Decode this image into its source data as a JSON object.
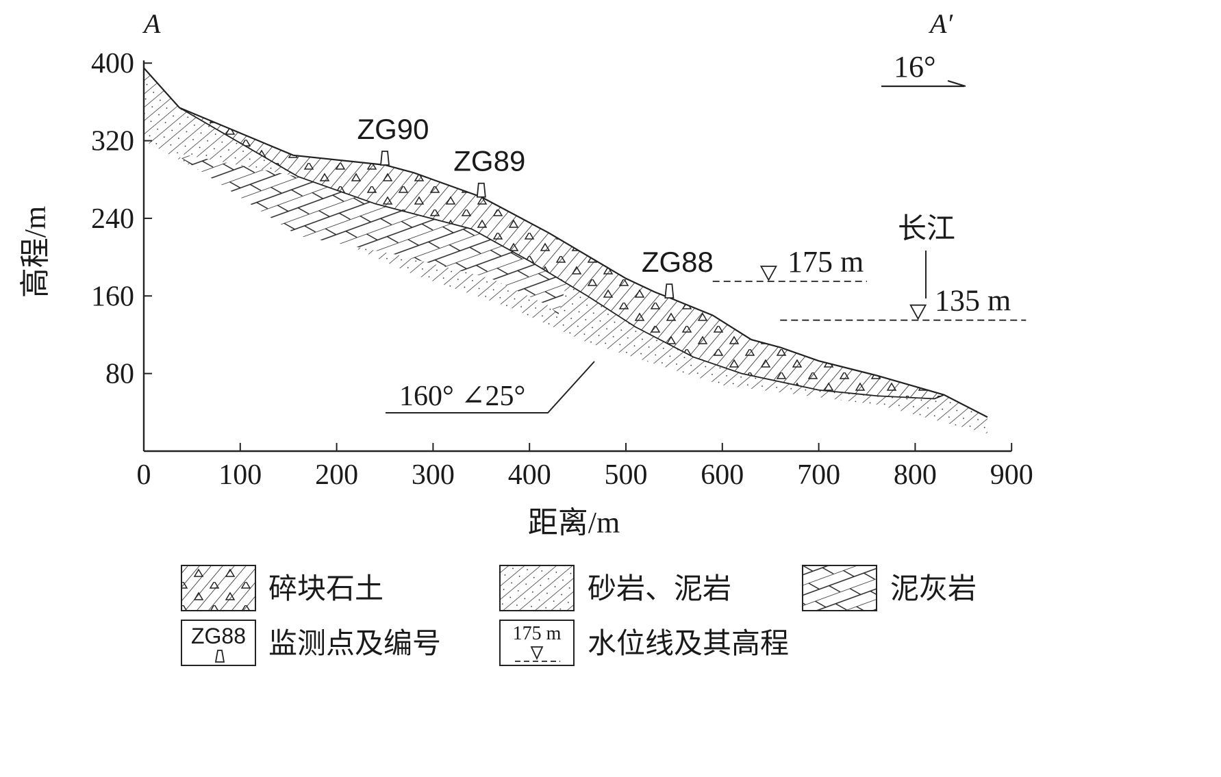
{
  "section": {
    "left_end": "A",
    "right_end": "A′",
    "direction": "16°",
    "yaxis_label": "高程/m",
    "xaxis_label": "距离/m",
    "x_ticks": [
      "0",
      "100",
      "200",
      "300",
      "400",
      "500",
      "600",
      "700",
      "800",
      "900"
    ],
    "y_ticks": [
      "80",
      "160",
      "240",
      "320",
      "400"
    ],
    "monitoring_points": [
      "ZG90",
      "ZG89",
      "ZG88"
    ],
    "water_levels": [
      "175 m",
      "135 m"
    ],
    "river_label": "长江",
    "bedding_attitude": "160° ∠25°"
  },
  "legend": {
    "debris_soil": "碎块石土",
    "sandstone_mudstone": "砂岩、泥岩",
    "marl": "泥灰岩",
    "monitoring_symbol": "ZG88",
    "monitoring_label": "监测点及编号",
    "water_symbol": "175 m",
    "water_label": "水位线及其高程"
  }
}
